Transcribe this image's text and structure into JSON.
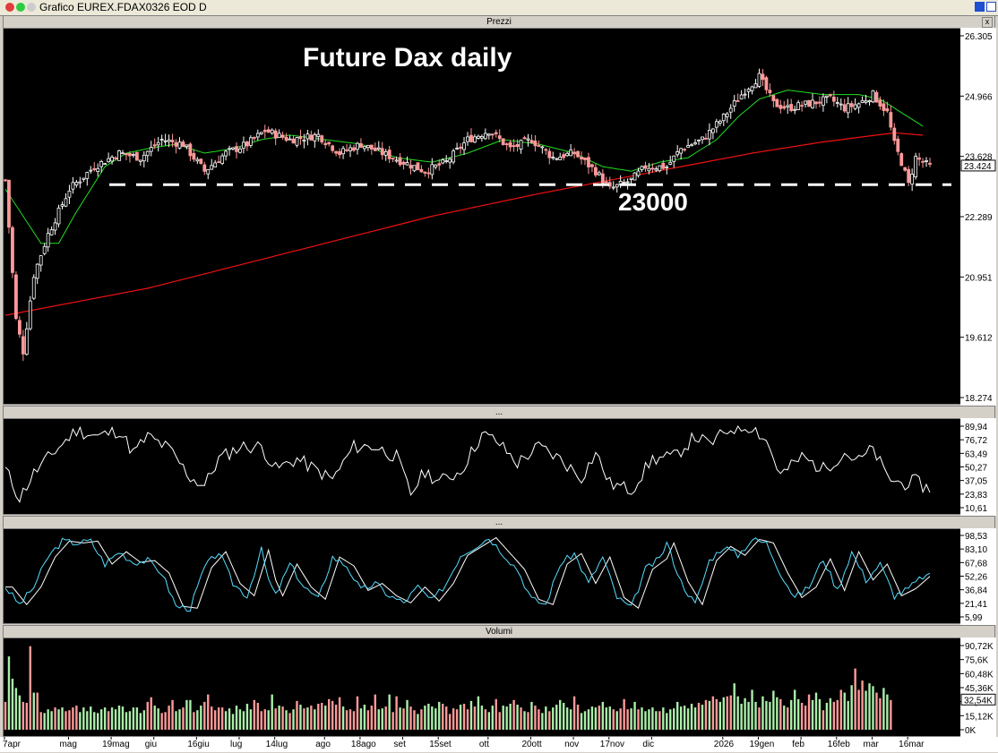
{
  "window": {
    "title": "Grafico EUREX.FDAX0326 EOD D"
  },
  "panels": {
    "price": {
      "title": "Prezzi"
    },
    "osc1": {
      "title": "..."
    },
    "osc2": {
      "title": "..."
    },
    "volume": {
      "title": "Volumi"
    }
  },
  "annotations": {
    "headline": "Future Dax daily",
    "level_label": "23000"
  },
  "chart_data": [
    {
      "type": "candlestick",
      "title": "Future Dax daily",
      "ylim": [
        18274,
        26305
      ],
      "y_ticks": [
        "26.305",
        "24.966",
        "23.628",
        "22.289",
        "20.951",
        "19.612",
        "18.274"
      ],
      "last_value": "23.424",
      "support_level": 23000,
      "colors": {
        "up": "#ffffff",
        "down": "#ff9999",
        "short_ma": "#22dd22",
        "long_ma": "#ee1111"
      },
      "x_labels": [
        "7apr",
        "mag",
        "19mag",
        "giu",
        "16giu",
        "lug",
        "14lug",
        "ago",
        "18ago",
        "set",
        "15set",
        "ott",
        "20ott",
        "nov",
        "17nov",
        "dic",
        "2026",
        "19gen",
        "feb",
        "16feb",
        "mar",
        "16mar"
      ],
      "close_path": [
        [
          0,
          23100
        ],
        [
          3,
          20000
        ],
        [
          5,
          19300
        ],
        [
          8,
          21000
        ],
        [
          12,
          21900
        ],
        [
          18,
          22900
        ],
        [
          25,
          23400
        ],
        [
          32,
          23700
        ],
        [
          38,
          23600
        ],
        [
          44,
          24000
        ],
        [
          50,
          23900
        ],
        [
          56,
          23300
        ],
        [
          62,
          23700
        ],
        [
          68,
          23900
        ],
        [
          73,
          24200
        ],
        [
          80,
          24000
        ],
        [
          88,
          24100
        ],
        [
          94,
          23700
        ],
        [
          100,
          23900
        ],
        [
          106,
          23700
        ],
        [
          112,
          23500
        ],
        [
          118,
          23300
        ],
        [
          124,
          23500
        ],
        [
          130,
          24000
        ],
        [
          136,
          24200
        ],
        [
          142,
          23800
        ],
        [
          148,
          24000
        ],
        [
          154,
          23600
        ],
        [
          160,
          23700
        ],
        [
          166,
          23300
        ],
        [
          170,
          22900
        ],
        [
          176,
          23100
        ],
        [
          180,
          23400
        ],
        [
          186,
          23400
        ],
        [
          190,
          23800
        ],
        [
          196,
          24000
        ],
        [
          202,
          24500
        ],
        [
          208,
          25100
        ],
        [
          212,
          25400
        ],
        [
          216,
          24800
        ],
        [
          220,
          24700
        ],
        [
          226,
          24800
        ],
        [
          232,
          24900
        ],
        [
          236,
          24700
        ],
        [
          240,
          24800
        ],
        [
          244,
          25000
        ],
        [
          248,
          24600
        ],
        [
          250,
          23900
        ],
        [
          252,
          23500
        ],
        [
          254,
          23000
        ],
        [
          256,
          23600
        ],
        [
          258,
          23500
        ],
        [
          260,
          23400
        ]
      ],
      "short_ma_path": [
        [
          0,
          22900
        ],
        [
          5,
          22300
        ],
        [
          10,
          21700
        ],
        [
          15,
          21700
        ],
        [
          20,
          22400
        ],
        [
          28,
          23400
        ],
        [
          34,
          23700
        ],
        [
          40,
          23800
        ],
        [
          48,
          23900
        ],
        [
          56,
          23700
        ],
        [
          64,
          23800
        ],
        [
          72,
          24000
        ],
        [
          80,
          24100
        ],
        [
          90,
          24000
        ],
        [
          100,
          23900
        ],
        [
          110,
          23600
        ],
        [
          120,
          23500
        ],
        [
          130,
          23700
        ],
        [
          140,
          24000
        ],
        [
          150,
          23900
        ],
        [
          160,
          23700
        ],
        [
          168,
          23400
        ],
        [
          176,
          23300
        ],
        [
          184,
          23500
        ],
        [
          192,
          23600
        ],
        [
          200,
          24000
        ],
        [
          206,
          24500
        ],
        [
          212,
          24900
        ],
        [
          220,
          25100
        ],
        [
          230,
          25000
        ],
        [
          240,
          25000
        ],
        [
          246,
          24900
        ],
        [
          252,
          24600
        ],
        [
          258,
          24300
        ]
      ],
      "long_ma_path": [
        [
          0,
          20100
        ],
        [
          40,
          20700
        ],
        [
          80,
          21500
        ],
        [
          120,
          22300
        ],
        [
          150,
          22800
        ],
        [
          170,
          23100
        ],
        [
          190,
          23400
        ],
        [
          210,
          23700
        ],
        [
          230,
          23950
        ],
        [
          250,
          24150
        ],
        [
          258,
          24100
        ]
      ]
    },
    {
      "type": "line",
      "ylim": [
        10.61,
        89.94
      ],
      "y_ticks": [
        "89,94",
        "76,72",
        "63,49",
        "50,27",
        "37,05",
        "23,83",
        "10,61"
      ],
      "colors": {
        "line": "#ffffff"
      },
      "path": [
        [
          0,
          48
        ],
        [
          4,
          20
        ],
        [
          8,
          44
        ],
        [
          14,
          66
        ],
        [
          20,
          86
        ],
        [
          26,
          80
        ],
        [
          32,
          86
        ],
        [
          36,
          64
        ],
        [
          40,
          80
        ],
        [
          46,
          68
        ],
        [
          52,
          40
        ],
        [
          56,
          32
        ],
        [
          60,
          58
        ],
        [
          66,
          70
        ],
        [
          72,
          70
        ],
        [
          76,
          48
        ],
        [
          82,
          58
        ],
        [
          86,
          50
        ],
        [
          92,
          38
        ],
        [
          98,
          70
        ],
        [
          104,
          70
        ],
        [
          110,
          60
        ],
        [
          114,
          24
        ],
        [
          118,
          46
        ],
        [
          122,
          36
        ],
        [
          128,
          46
        ],
        [
          134,
          82
        ],
        [
          138,
          76
        ],
        [
          144,
          54
        ],
        [
          150,
          70
        ],
        [
          156,
          58
        ],
        [
          162,
          40
        ],
        [
          166,
          64
        ],
        [
          170,
          34
        ],
        [
          176,
          28
        ],
        [
          182,
          58
        ],
        [
          188,
          60
        ],
        [
          194,
          80
        ],
        [
          198,
          72
        ],
        [
          204,
          88
        ],
        [
          210,
          90
        ],
        [
          214,
          76
        ],
        [
          218,
          42
        ],
        [
          224,
          60
        ],
        [
          230,
          48
        ],
        [
          236,
          64
        ],
        [
          240,
          56
        ],
        [
          244,
          68
        ],
        [
          248,
          40
        ],
        [
          252,
          34
        ],
        [
          256,
          36
        ],
        [
          260,
          28
        ]
      ]
    },
    {
      "type": "line",
      "ylim": [
        5.99,
        98.53
      ],
      "y_ticks": [
        "98,53",
        "83,10",
        "67,68",
        "52,26",
        "36,84",
        "21,41",
        "5,99"
      ],
      "colors": {
        "k": "#55ddff",
        "d": "#ffffff"
      },
      "path": [
        [
          0,
          40
        ],
        [
          4,
          20
        ],
        [
          8,
          40
        ],
        [
          12,
          74
        ],
        [
          16,
          92
        ],
        [
          20,
          90
        ],
        [
          24,
          92
        ],
        [
          28,
          66
        ],
        [
          32,
          80
        ],
        [
          36,
          68
        ],
        [
          40,
          70
        ],
        [
          44,
          56
        ],
        [
          48,
          18
        ],
        [
          52,
          16
        ],
        [
          56,
          62
        ],
        [
          60,
          80
        ],
        [
          64,
          44
        ],
        [
          68,
          30
        ],
        [
          72,
          82
        ],
        [
          74,
          48
        ],
        [
          76,
          30
        ],
        [
          80,
          66
        ],
        [
          84,
          40
        ],
        [
          88,
          26
        ],
        [
          92,
          74
        ],
        [
          96,
          64
        ],
        [
          100,
          36
        ],
        [
          104,
          44
        ],
        [
          108,
          30
        ],
        [
          112,
          22
        ],
        [
          116,
          40
        ],
        [
          120,
          24
        ],
        [
          124,
          44
        ],
        [
          128,
          76
        ],
        [
          132,
          86
        ],
        [
          136,
          96
        ],
        [
          140,
          78
        ],
        [
          144,
          60
        ],
        [
          148,
          26
        ],
        [
          152,
          20
        ],
        [
          156,
          66
        ],
        [
          160,
          78
        ],
        [
          164,
          44
        ],
        [
          168,
          74
        ],
        [
          172,
          28
        ],
        [
          176,
          16
        ],
        [
          180,
          60
        ],
        [
          184,
          72
        ],
        [
          186,
          90
        ],
        [
          190,
          46
        ],
        [
          194,
          20
        ],
        [
          198,
          70
        ],
        [
          202,
          86
        ],
        [
          206,
          76
        ],
        [
          210,
          94
        ],
        [
          214,
          90
        ],
        [
          218,
          56
        ],
        [
          222,
          28
        ],
        [
          226,
          40
        ],
        [
          230,
          72
        ],
        [
          234,
          36
        ],
        [
          238,
          80
        ],
        [
          242,
          48
        ],
        [
          246,
          66
        ],
        [
          250,
          30
        ],
        [
          254,
          38
        ],
        [
          258,
          52
        ]
      ]
    },
    {
      "type": "bar",
      "ylim": [
        0,
        90720
      ],
      "y_ticks": [
        "90,72K",
        "75,6K",
        "60,48K",
        "45,36K",
        "32,54K",
        "15,12K",
        "0K"
      ],
      "last_value": "32,54K",
      "colors": {
        "up": "#aaeeaa",
        "down": "#ff9999"
      },
      "values_k": [
        30,
        79,
        55,
        45,
        37,
        30,
        29,
        90,
        40,
        40,
        19,
        18,
        22,
        20,
        24,
        22,
        24,
        20,
        21,
        24,
        26,
        19,
        24,
        20,
        25,
        19,
        18,
        22,
        24,
        20,
        24,
        22,
        26,
        25,
        19,
        20,
        24,
        24,
        18,
        21,
        30,
        35,
        26,
        23,
        18,
        19,
        26,
        32,
        20,
        22,
        24,
        32,
        32,
        19,
        21,
        26,
        30,
        38,
        25,
        21,
        24,
        24,
        20,
        23,
        17,
        26,
        22,
        20,
        28,
        22,
        32,
        29,
        20,
        22,
        21,
        38,
        23,
        26,
        25,
        21,
        18,
        22,
        31,
        27,
        23,
        24,
        26,
        22,
        28,
        29,
        26,
        33,
        31,
        27,
        35,
        25,
        21,
        22,
        20,
        36,
        23,
        27,
        21,
        26,
        38,
        22,
        23,
        25,
        38,
        19,
        36,
        24,
        23,
        32,
        25,
        21,
        17,
        22,
        26,
        28,
        25,
        23,
        30,
        28,
        25,
        17,
        23,
        22,
        27,
        28,
        22,
        31,
        25,
        36,
        26,
        22,
        19,
        26,
        33,
        19,
        26,
        25,
        28,
        32,
        27,
        24,
        20,
        19,
        30,
        26,
        22,
        18,
        25,
        20,
        24,
        27,
        32,
        29,
        24,
        22,
        36,
        27,
        18,
        20,
        22,
        25,
        24,
        26,
        30,
        24,
        25,
        22,
        20,
        23,
        33,
        22,
        23,
        30,
        22,
        24,
        20,
        22,
        24,
        20,
        20,
        24,
        18,
        22,
        23,
        30,
        25,
        26,
        23,
        28,
        24,
        29,
        27,
        32,
        31,
        36,
        33,
        30,
        35,
        36,
        37,
        50,
        36,
        28,
        34,
        30,
        43,
        30,
        24,
        36,
        31,
        30,
        42,
        35,
        33,
        26,
        24,
        32,
        43,
        33,
        29,
        26,
        38,
        32,
        40,
        33,
        21,
        29,
        34,
        30,
        32,
        43,
        40,
        31,
        48,
        66,
        43,
        53,
        42,
        50,
        47,
        40,
        34,
        45,
        38,
        32
      ]
    }
  ]
}
